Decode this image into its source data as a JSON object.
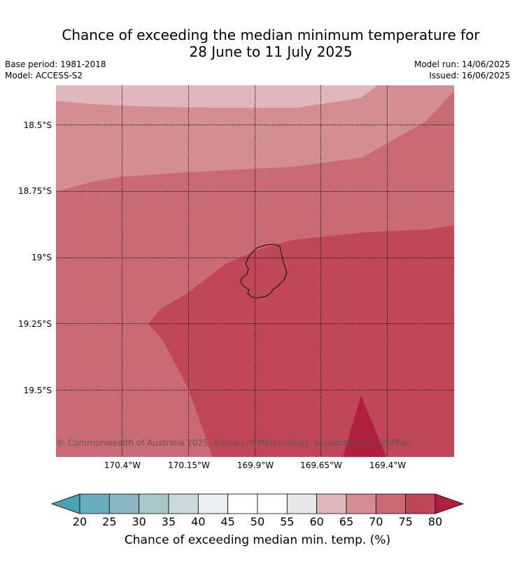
{
  "header": {
    "title_line1": "Chance of exceeding the median minimum temperature for",
    "title_line2": "28 June to 11 July 2025",
    "base_period": "Base period: 1981-2018",
    "model": "Model: ACCESS-S2",
    "model_run": "Model run: 14/06/2025",
    "issued": "Issued: 16/06/2025"
  },
  "map": {
    "latitude_labels": [
      "18.5°S",
      "18.75°S",
      "19°S",
      "19.25°S",
      "19.5°S"
    ],
    "longitude_labels": [
      "170.4°W",
      "170.15°W",
      "169.9°W",
      "169.65°W",
      "169.4°W"
    ],
    "credit": "© Commonwealth of Australia 2025, Bureau of Meteorology, supported by COSPPac",
    "island_icon": "island-outline-icon"
  },
  "legend": {
    "label": "Chance of exceeding median min. temp. (%)",
    "ticks": [
      "20",
      "25",
      "30",
      "35",
      "40",
      "45",
      "50",
      "55",
      "60",
      "65",
      "70",
      "75",
      "80"
    ],
    "colors": [
      "#4aa3b5",
      "#6aadbe",
      "#8ab6c2",
      "#a8c7cb",
      "#c9d9dc",
      "#eaf1f2",
      "#ffffff",
      "#ffffff",
      "#e8e8e8",
      "#e0b7bb",
      "#d58d94",
      "#c96a74",
      "#c04757",
      "#b11f3e"
    ]
  }
}
